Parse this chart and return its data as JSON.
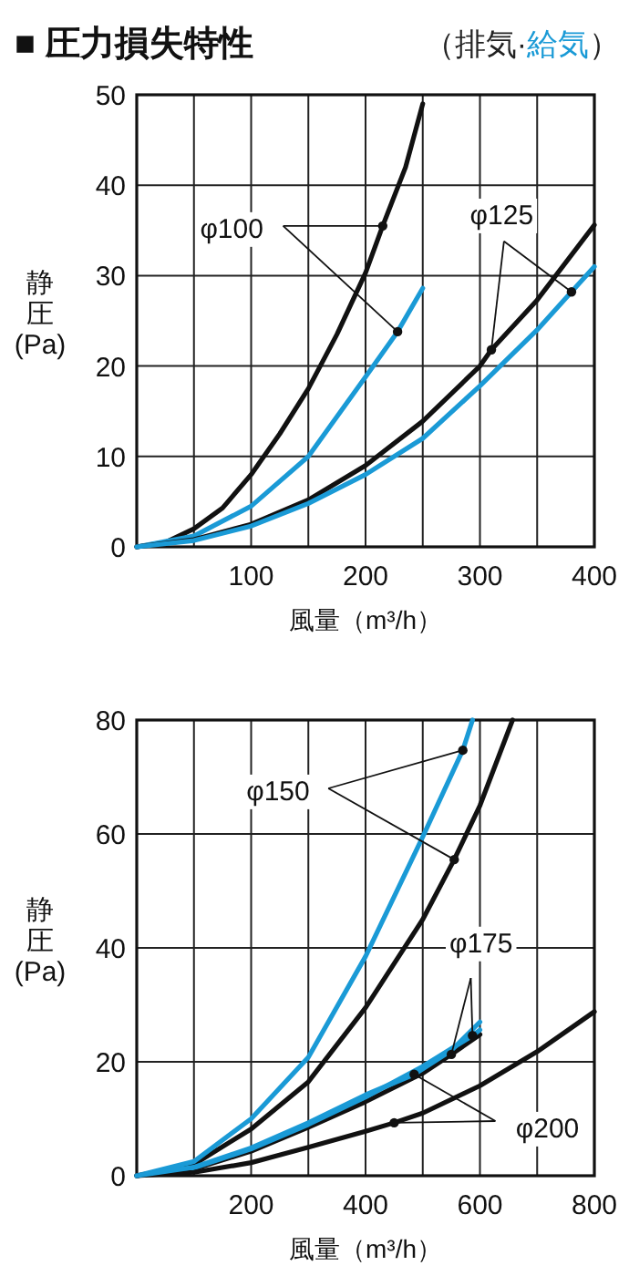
{
  "chart_data": [
    {
      "type": "line",
      "title": "■ 圧力損失特性",
      "subtitle": "（排気·給気）",
      "xlabel": "風量（m³/h）",
      "ylabel": "静圧 (Pa)",
      "xlim": [
        0,
        400
      ],
      "ylim": [
        0,
        50
      ],
      "xticks": [
        {
          "value": 0,
          "label": null
        },
        {
          "value": 50,
          "label": null
        },
        100,
        {
          "value": 150,
          "label": null
        },
        200,
        {
          "value": 250,
          "label": null
        },
        300,
        {
          "value": 350,
          "label": null
        },
        400
      ],
      "yticks": [
        0,
        10,
        20,
        30,
        40,
        50
      ],
      "grid": true,
      "series": [
        {
          "name": "φ100",
          "color": "#111111",
          "x": [
            0,
            25,
            50,
            75,
            100,
            125,
            150,
            175,
            200,
            215,
            235,
            250
          ],
          "values": [
            0,
            0.5,
            2,
            4.3,
            8,
            12.5,
            17.5,
            23.5,
            30.3,
            35.5,
            42,
            49
          ]
        },
        {
          "color": "#1a9ad6",
          "x": [
            0,
            50,
            100,
            150,
            200,
            228,
            250
          ],
          "values": [
            0,
            1.2,
            4.5,
            10,
            18.8,
            23.8,
            28.6
          ]
        },
        {
          "name": "φ125",
          "color": "#111111",
          "x": [
            0,
            50,
            100,
            150,
            200,
            250,
            300,
            310,
            350,
            400
          ],
          "values": [
            0,
            0.8,
            2.5,
            5.2,
            9,
            13.9,
            20,
            21.8,
            27.3,
            35.6
          ]
        },
        {
          "color": "#1a9ad6",
          "x": [
            0,
            50,
            100,
            150,
            200,
            250,
            300,
            350,
            380,
            400
          ],
          "values": [
            0,
            0.7,
            2.3,
            4.8,
            8,
            12,
            17.8,
            24,
            28.2,
            31
          ]
        }
      ]
    },
    {
      "type": "line",
      "xlabel": "風量（m³/h）",
      "ylabel": "静圧 (Pa)",
      "xlim": [
        0,
        800
      ],
      "ylim": [
        0,
        80
      ],
      "xticks": [
        {
          "value": 0,
          "label": null
        },
        {
          "value": 100,
          "label": null
        },
        200,
        {
          "value": 300,
          "label": null
        },
        400,
        {
          "value": 500,
          "label": null
        },
        600,
        {
          "value": 700,
          "label": null
        },
        800
      ],
      "yticks": [
        0,
        20,
        40,
        60,
        80
      ],
      "grid": true,
      "series": [
        {
          "name": "φ150",
          "color": "#111111",
          "x": [
            0,
            100,
            200,
            300,
            400,
            500,
            555,
            600,
            657
          ],
          "values": [
            0,
            2,
            8.2,
            16.5,
            29.5,
            45,
            55.5,
            65,
            80
          ]
        },
        {
          "color": "#1a9ad6",
          "x": [
            0,
            100,
            200,
            300,
            400,
            500,
            570,
            587
          ],
          "values": [
            0,
            2.5,
            10,
            20.8,
            38.5,
            59.5,
            74.7,
            80
          ]
        },
        {
          "name": "φ175",
          "color": "#111111",
          "x": [
            0,
            100,
            200,
            300,
            400,
            500,
            550,
            600
          ],
          "values": [
            0,
            1.2,
            4.3,
            8.5,
            13,
            18,
            21.3,
            24.8
          ]
        },
        {
          "color": "#1a9ad6",
          "x": [
            0,
            100,
            200,
            300,
            400,
            500,
            587,
            600
          ],
          "values": [
            0,
            1.4,
            4.7,
            9,
            13.8,
            19.2,
            24.6,
            25.6
          ]
        },
        {
          "name": "φ200",
          "color": "#111111",
          "x": [
            0,
            100,
            200,
            300,
            400,
            450,
            500,
            600,
            700,
            800
          ],
          "values": [
            0,
            0.6,
            2.3,
            5,
            7.8,
            9.3,
            11,
            15.8,
            21.8,
            28.8
          ]
        },
        {
          "color": "#1a9ad6",
          "x": [
            0,
            100,
            200,
            300,
            400,
            485,
            550,
            600
          ],
          "values": [
            0,
            1.5,
            4.9,
            9.3,
            14.2,
            17.8,
            22,
            27
          ]
        }
      ]
    }
  ]
}
